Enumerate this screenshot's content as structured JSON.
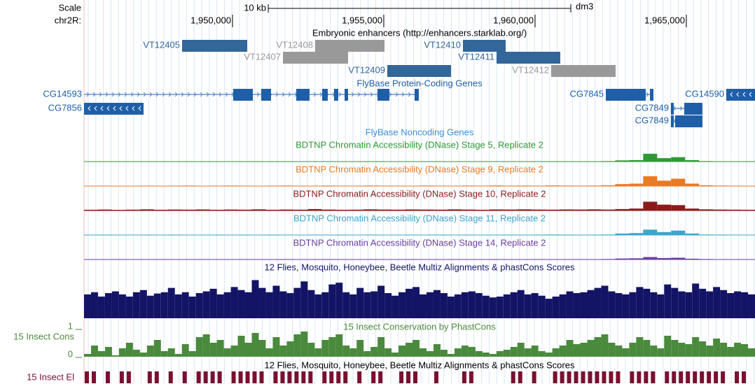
{
  "ruler": {
    "scale_label": "Scale",
    "chrom_label": "chr2R:",
    "assembly": "dm3",
    "scale_bar": {
      "label": "10 kb",
      "start": 1951181,
      "length": 10000
    },
    "xlim": [
      1945093,
      1967269
    ],
    "xticks": [
      {
        "value": 1950000,
        "label": "1,950,000"
      },
      {
        "value": 1955000,
        "label": "1,955,000"
      },
      {
        "value": 1960000,
        "label": "1,960,000"
      },
      {
        "value": 1965000,
        "label": "1,965,000"
      }
    ]
  },
  "enhancers": {
    "title": "Embryonic enhancers (http://enhancers.starklab.org/)",
    "items": [
      {
        "name": "VT12405",
        "start": 1948333,
        "end": 1950486,
        "row": 0,
        "color": "#336699"
      },
      {
        "name": "VT12408",
        "start": 1952731,
        "end": 1955023,
        "row": 0,
        "color": "#999999"
      },
      {
        "name": "VT12410",
        "start": 1957616,
        "end": 1959028,
        "row": 0,
        "color": "#336699"
      },
      {
        "name": "VT12407",
        "start": 1951667,
        "end": 1953819,
        "row": 1,
        "color": "#999999"
      },
      {
        "name": "VT12411",
        "start": 1958727,
        "end": 1960833,
        "row": 1,
        "color": "#336699"
      },
      {
        "name": "VT12409",
        "start": 1955116,
        "end": 1957222,
        "row": 2,
        "color": "#336699"
      },
      {
        "name": "VT12412",
        "start": 1960532,
        "end": 1962662,
        "row": 2,
        "color": "#999999"
      }
    ]
  },
  "genes": {
    "title": "FlyBase Protein-Coding Genes",
    "color": "#1f5fa8",
    "items": [
      {
        "name": "CG14593",
        "strand": "+",
        "row": 0,
        "start": 1945093,
        "end": 1956157,
        "exons": [
          [
            1950023,
            1950671
          ],
          [
            1950949,
            1951273
          ],
          [
            1952106,
            1952546
          ],
          [
            1952963,
            1953148
          ],
          [
            1953356,
            1953495
          ],
          [
            1953704,
            1953819
          ],
          [
            1954792,
            1955185
          ],
          [
            1956018,
            1956157
          ]
        ]
      },
      {
        "name": "CG7856",
        "strand": "-",
        "row": 1,
        "start": 1945093,
        "end": 1947060,
        "exons": [
          [
            1945093,
            1947060
          ]
        ]
      },
      {
        "name": "CG7845",
        "strand": "+",
        "row": 0,
        "start": 1962338,
        "end": 1963912,
        "exons": [
          [
            1962338,
            1963657
          ],
          [
            1963796,
            1963912
          ]
        ]
      },
      {
        "name": "CG14590",
        "strand": "-",
        "row": 0,
        "start": 1966319,
        "end": 1967269,
        "exons": [
          [
            1966319,
            1967269
          ]
        ]
      },
      {
        "name": "CG7849",
        "strand": "+",
        "row": 1,
        "start": 1964491,
        "end": 1965532,
        "exons": [
          [
            1964491,
            1964583
          ],
          [
            1964930,
            1965532
          ]
        ]
      },
      {
        "name": "CG7849",
        "strand": "+",
        "row": 2,
        "start": 1964491,
        "end": 1965532,
        "exons": [
          [
            1964491,
            1964583
          ],
          [
            1964630,
            1965532
          ]
        ]
      }
    ]
  },
  "noncoding": {
    "title": "FlyBase Noncoding Genes",
    "color": "#3d8fd6"
  },
  "dnase": [
    {
      "title": "BDTNP Chromatin Accessibility (DNase) Stage 5, Replicate 2",
      "color": "#2e9a35",
      "values": [
        0.02,
        0.03,
        0.02,
        0.02,
        0.03,
        0.02,
        0.02,
        0.03,
        0.02,
        0.02,
        0.03,
        0.02,
        0.02,
        0.02,
        0.03,
        0.02,
        0.02,
        0.03,
        0.02,
        0.02,
        0.03,
        0.02,
        0.02,
        0.02,
        0.03,
        0.02,
        0.02,
        0.03,
        0.02,
        0.02,
        0.02,
        0.03,
        0.02,
        0.03,
        0.02,
        0.02,
        0.03,
        0.05,
        0.12,
        0.15,
        0.8,
        0.35,
        0.45,
        0.15,
        0.05,
        0.03,
        0.02,
        0.02
      ]
    },
    {
      "title": "BDTNP Chromatin Accessibility (DNase) Stage 9, Replicate 2",
      "color": "#ea7a24",
      "values": [
        0.03,
        0.04,
        0.03,
        0.03,
        0.04,
        0.03,
        0.04,
        0.05,
        0.03,
        0.04,
        0.05,
        0.04,
        0.03,
        0.04,
        0.05,
        0.04,
        0.03,
        0.05,
        0.04,
        0.03,
        0.05,
        0.04,
        0.04,
        0.03,
        0.05,
        0.04,
        0.03,
        0.05,
        0.04,
        0.06,
        0.04,
        0.05,
        0.04,
        0.06,
        0.05,
        0.04,
        0.05,
        0.08,
        0.2,
        0.25,
        1,
        0.55,
        0.75,
        0.25,
        0.08,
        0.05,
        0.04,
        0.03
      ]
    },
    {
      "title": "BDTNP Chromatin Accessibility (DNase) Stage 10, Replicate 2",
      "color": "#8c1a1a",
      "values": [
        0.08,
        0.1,
        0.07,
        0.09,
        0.12,
        0.08,
        0.1,
        0.09,
        0.11,
        0.08,
        0.1,
        0.09,
        0.12,
        0.08,
        0.1,
        0.09,
        0.15,
        0.1,
        0.08,
        0.09,
        0.12,
        0.1,
        0.09,
        0.11,
        0.1,
        0.09,
        0.12,
        0.1,
        0.08,
        0.11,
        0.1,
        0.12,
        0.1,
        0.09,
        0.11,
        0.1,
        0.12,
        0.1,
        0.15,
        0.2,
        0.9,
        0.6,
        0.55,
        0.2,
        0.12,
        0.1,
        0.09,
        0.08
      ]
    },
    {
      "title": "BDTNP Chromatin Accessibility (DNase) Stage 11, Replicate 2",
      "color": "#3aa6cc",
      "values": [
        0.03,
        0.04,
        0.03,
        0.03,
        0.04,
        0.03,
        0.04,
        0.03,
        0.03,
        0.04,
        0.03,
        0.04,
        0.03,
        0.04,
        0.03,
        0.03,
        0.04,
        0.03,
        0.04,
        0.03,
        0.04,
        0.03,
        0.03,
        0.04,
        0.03,
        0.04,
        0.03,
        0.04,
        0.03,
        0.03,
        0.04,
        0.03,
        0.04,
        0.05,
        0.04,
        0.03,
        0.04,
        0.05,
        0.15,
        0.2,
        0.55,
        0.3,
        0.45,
        0.15,
        0.05,
        0.04,
        0.03,
        0.03
      ]
    },
    {
      "title": "BDTNP Chromatin Accessibility (DNase) Stage 14, Replicate 2",
      "color": "#6b3fa0",
      "values": [
        0.03,
        0.03,
        0.04,
        0.03,
        0.03,
        0.04,
        0.03,
        0.03,
        0.04,
        0.03,
        0.03,
        0.04,
        0.03,
        0.03,
        0.04,
        0.03,
        0.03,
        0.04,
        0.03,
        0.03,
        0.04,
        0.03,
        0.03,
        0.04,
        0.03,
        0.03,
        0.04,
        0.03,
        0.03,
        0.04,
        0.03,
        0.03,
        0.04,
        0.03,
        0.03,
        0.04,
        0.03,
        0.05,
        0.1,
        0.12,
        0.25,
        0.15,
        0.18,
        0.08,
        0.05,
        0.03,
        0.03,
        0.03
      ]
    }
  ],
  "multiz": {
    "title": "12 Flies, Mosquito, Honeybee, Beetle Multiz Alignments & phastCons Scores",
    "color": "#141466",
    "values": [
      0.55,
      0.6,
      0.5,
      0.58,
      0.62,
      0.55,
      0.5,
      0.6,
      0.65,
      0.52,
      0.57,
      0.6,
      0.7,
      0.55,
      0.6,
      0.5,
      0.58,
      0.62,
      0.68,
      0.55,
      0.6,
      0.72,
      0.65,
      0.6,
      0.88,
      0.7,
      0.6,
      0.75,
      0.62,
      0.58,
      0.7,
      0.85,
      0.65,
      0.55,
      0.6,
      0.78,
      0.82,
      0.6,
      0.55,
      0.7,
      0.6,
      0.62,
      0.75,
      0.58,
      0.52,
      0.6,
      0.68,
      0.72,
      0.55,
      0.6,
      0.65,
      0.58,
      0.5,
      0.55,
      0.6,
      0.62,
      0.58,
      0.52,
      0.48,
      0.5,
      0.55,
      0.6,
      0.65,
      0.55,
      0.58,
      0.52,
      0.45,
      0.5,
      0.55,
      0.62,
      0.58,
      0.6,
      0.65,
      0.7,
      0.75,
      0.62,
      0.58,
      0.55,
      0.6,
      0.72,
      0.68,
      0.6,
      0.55,
      0.78,
      0.7,
      0.62,
      0.6,
      0.8,
      0.68,
      0.62,
      0.72,
      0.65,
      0.58,
      0.62,
      0.6,
      0.55
    ]
  },
  "phastcons": {
    "title": "15 Insect Conservation by PhastCons",
    "label": "15 Insect Cons",
    "color": "#4a8a3c",
    "ylim": [
      0,
      1
    ],
    "yticks": [
      0,
      1
    ],
    "values": [
      0.1,
      0.4,
      0.2,
      0.35,
      0.05,
      0.3,
      0.5,
      0.25,
      0.15,
      0.4,
      0.6,
      0.2,
      0.3,
      0.1,
      0.45,
      0.2,
      0.7,
      0.8,
      0.5,
      0.6,
      0.3,
      0.4,
      0.75,
      0.5,
      0.85,
      0.6,
      0.3,
      0.7,
      0.4,
      0.55,
      0.8,
      0.9,
      0.5,
      0.3,
      0.6,
      0.7,
      0.8,
      0.4,
      0.3,
      0.6,
      0.2,
      0.35,
      0.7,
      0.3,
      0.15,
      0.4,
      0.5,
      0.6,
      0.3,
      0.2,
      0.45,
      0.25,
      0.1,
      0.3,
      0.4,
      0.35,
      0.2,
      0.15,
      0.1,
      0.2,
      0.25,
      0.35,
      0.5,
      0.3,
      0.4,
      0.2,
      0.15,
      0.3,
      0.4,
      0.6,
      0.45,
      0.5,
      0.6,
      0.7,
      0.8,
      0.5,
      0.4,
      0.3,
      0.5,
      0.7,
      0.6,
      0.4,
      0.3,
      0.75,
      0.6,
      0.5,
      0.45,
      0.7,
      0.55,
      0.4,
      0.65,
      0.5,
      0.35,
      0.5,
      0.45,
      0.3
    ]
  },
  "elements": {
    "title": "12 Flies, Mosquito, Honeybee, Beetle Multiz Alignments & phastCons Scores",
    "label": "15 Insect El",
    "color": "#7a1030",
    "flags": [
      1,
      1,
      0,
      1,
      0,
      1,
      1,
      0,
      0,
      1,
      1,
      0,
      1,
      0,
      1,
      0,
      1,
      1,
      1,
      1,
      0,
      1,
      1,
      1,
      1,
      1,
      0,
      1,
      1,
      1,
      1,
      1,
      1,
      0,
      1,
      1,
      1,
      1,
      0,
      1,
      0,
      1,
      1,
      0,
      0,
      1,
      1,
      1,
      0,
      0,
      1,
      0,
      0,
      0,
      1,
      1,
      0,
      0,
      0,
      0,
      0,
      1,
      1,
      0,
      1,
      0,
      0,
      1,
      1,
      1,
      1,
      1,
      1,
      1,
      1,
      1,
      1,
      0,
      1,
      1,
      1,
      1,
      0,
      1,
      1,
      1,
      1,
      1,
      1,
      1,
      1,
      1,
      0,
      1,
      1,
      0
    ]
  }
}
